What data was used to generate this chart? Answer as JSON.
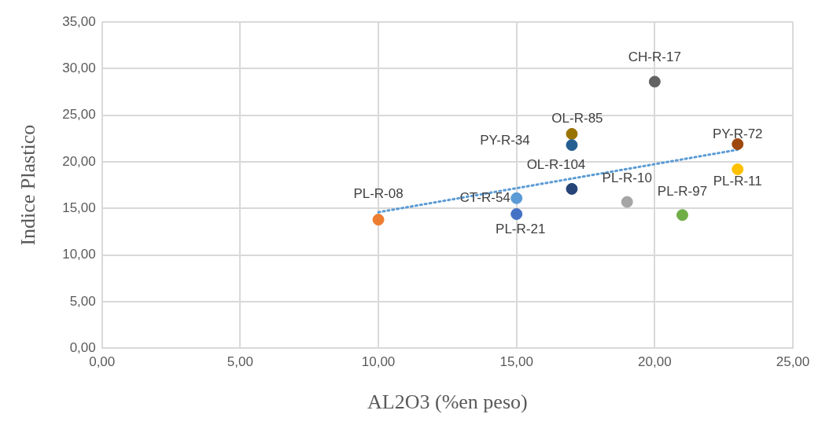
{
  "chart_data": {
    "type": "scatter",
    "xlabel": "AL2O3 (%en peso)",
    "ylabel": "Indice Plastico",
    "marker": "circle",
    "grid": true,
    "legend": false,
    "xlim": [
      0,
      25
    ],
    "xticks": [
      {
        "value": 0,
        "label": "0,00"
      },
      {
        "value": 5,
        "label": "5,00"
      },
      {
        "value": 10,
        "label": "10,00"
      },
      {
        "value": 15,
        "label": "15,00"
      },
      {
        "value": 20,
        "label": "20,00"
      },
      {
        "value": 25,
        "label": "25,00"
      }
    ],
    "ylim": [
      0,
      35
    ],
    "yticks": [
      {
        "value": 0,
        "label": "0,00"
      },
      {
        "value": 5,
        "label": "5,00"
      },
      {
        "value": 10,
        "label": "10,00"
      },
      {
        "value": 15,
        "label": "15,00"
      },
      {
        "value": 20,
        "label": "20,00"
      },
      {
        "value": 25,
        "label": "25,00"
      },
      {
        "value": 30,
        "label": "30,00"
      },
      {
        "value": 35,
        "label": "35,00"
      }
    ],
    "series": [
      {
        "name": "PL-R-08",
        "color": "#ed7d31",
        "x": [
          10
        ],
        "values": [
          13.8
        ]
      },
      {
        "name": "PL-R-21",
        "color": "#4472c4",
        "x": [
          15
        ],
        "values": [
          14.4
        ]
      },
      {
        "name": "CT-R-54",
        "color": "#5b9bd5",
        "x": [
          15
        ],
        "values": [
          16.1
        ]
      },
      {
        "name": "OL-R-104",
        "color": "#264478",
        "x": [
          17
        ],
        "values": [
          17.1
        ]
      },
      {
        "name": "PY-R-34",
        "color": "#255e91",
        "x": [
          17
        ],
        "values": [
          21.8
        ]
      },
      {
        "name": "OL-R-85",
        "color": "#997300",
        "x": [
          17
        ],
        "values": [
          23.0
        ]
      },
      {
        "name": "CH-R-17",
        "color": "#636363",
        "x": [
          20
        ],
        "values": [
          28.6
        ]
      },
      {
        "name": "PL-R-10",
        "color": "#a5a5a5",
        "x": [
          19
        ],
        "values": [
          15.7
        ]
      },
      {
        "name": "PL-R-97",
        "color": "#70ad47",
        "x": [
          21
        ],
        "values": [
          14.3
        ]
      },
      {
        "name": "PY-R-72",
        "color": "#9e480e",
        "x": [
          23
        ],
        "values": [
          21.9
        ]
      },
      {
        "name": "PL-R-11",
        "color": "#ffc000",
        "x": [
          23
        ],
        "values": [
          19.2
        ]
      },
      {
        "type": "line",
        "color": "#5b9bd5",
        "line_style": "dotted",
        "marker": "none",
        "x": [
          10,
          23
        ],
        "values": [
          14.6,
          21.3
        ]
      }
    ]
  }
}
